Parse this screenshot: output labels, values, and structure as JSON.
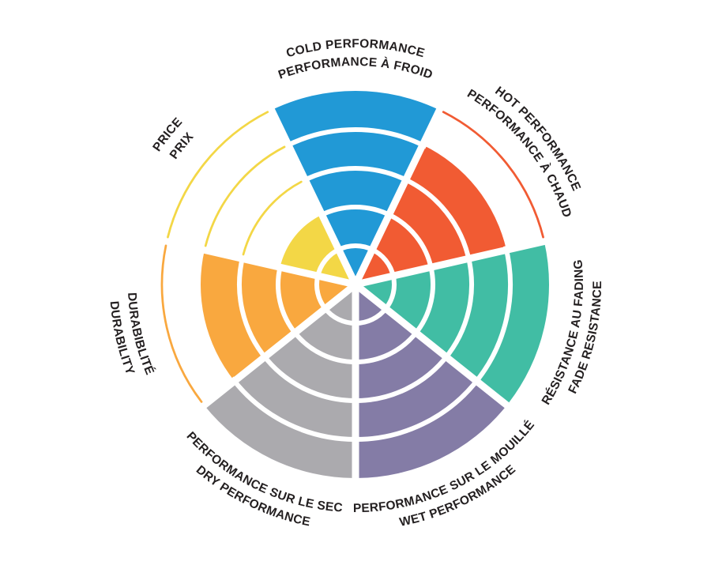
{
  "page": {
    "background": "#FFFFFF",
    "ink_color": "#231F20"
  },
  "chart_data": {
    "type": "pie",
    "subtype": "segmented-rating-wheel",
    "rings": 5,
    "rating_max": 5,
    "grid": "white ring and radial separators over filled sectors; unfilled rings drawn as thin colored arcs",
    "legend_position": "labels arched around wheel, English outer line, French inner line",
    "sectors": [
      {
        "id": "cold",
        "label_en": "COLD PERFORMANCE",
        "label_fr": "PERFORMANCE À FROID",
        "value": 5,
        "color": "#2199D6"
      },
      {
        "id": "hot",
        "label_en": "HOT PERFORMANCE",
        "label_fr": "PERFORMANCE À CHAUD",
        "value": 4,
        "color": "#F15B33"
      },
      {
        "id": "fade",
        "label_en": "FADE RESISTANCE",
        "label_fr": "RÉSISTANCE AU FADING",
        "value": 5,
        "color": "#41BDA4"
      },
      {
        "id": "wet",
        "label_en": "WET PERFORMANCE",
        "label_fr": "PERFORMANCE SUR LE MOUILLÉ",
        "value": 5,
        "color": "#847CA6"
      },
      {
        "id": "dry",
        "label_en": "DRY PERFORMANCE",
        "label_fr": "PERFORMANCE SUR LE SEC",
        "value": 5,
        "color": "#ABAAAE"
      },
      {
        "id": "durability",
        "label_en": "DURABILITY",
        "label_fr": "DURABIBLITÉ",
        "value": 4,
        "color": "#F9A83F"
      },
      {
        "id": "price",
        "label_en": "PRICE",
        "label_fr": "PRIX",
        "value": 2,
        "color": "#F3D746"
      }
    ]
  }
}
